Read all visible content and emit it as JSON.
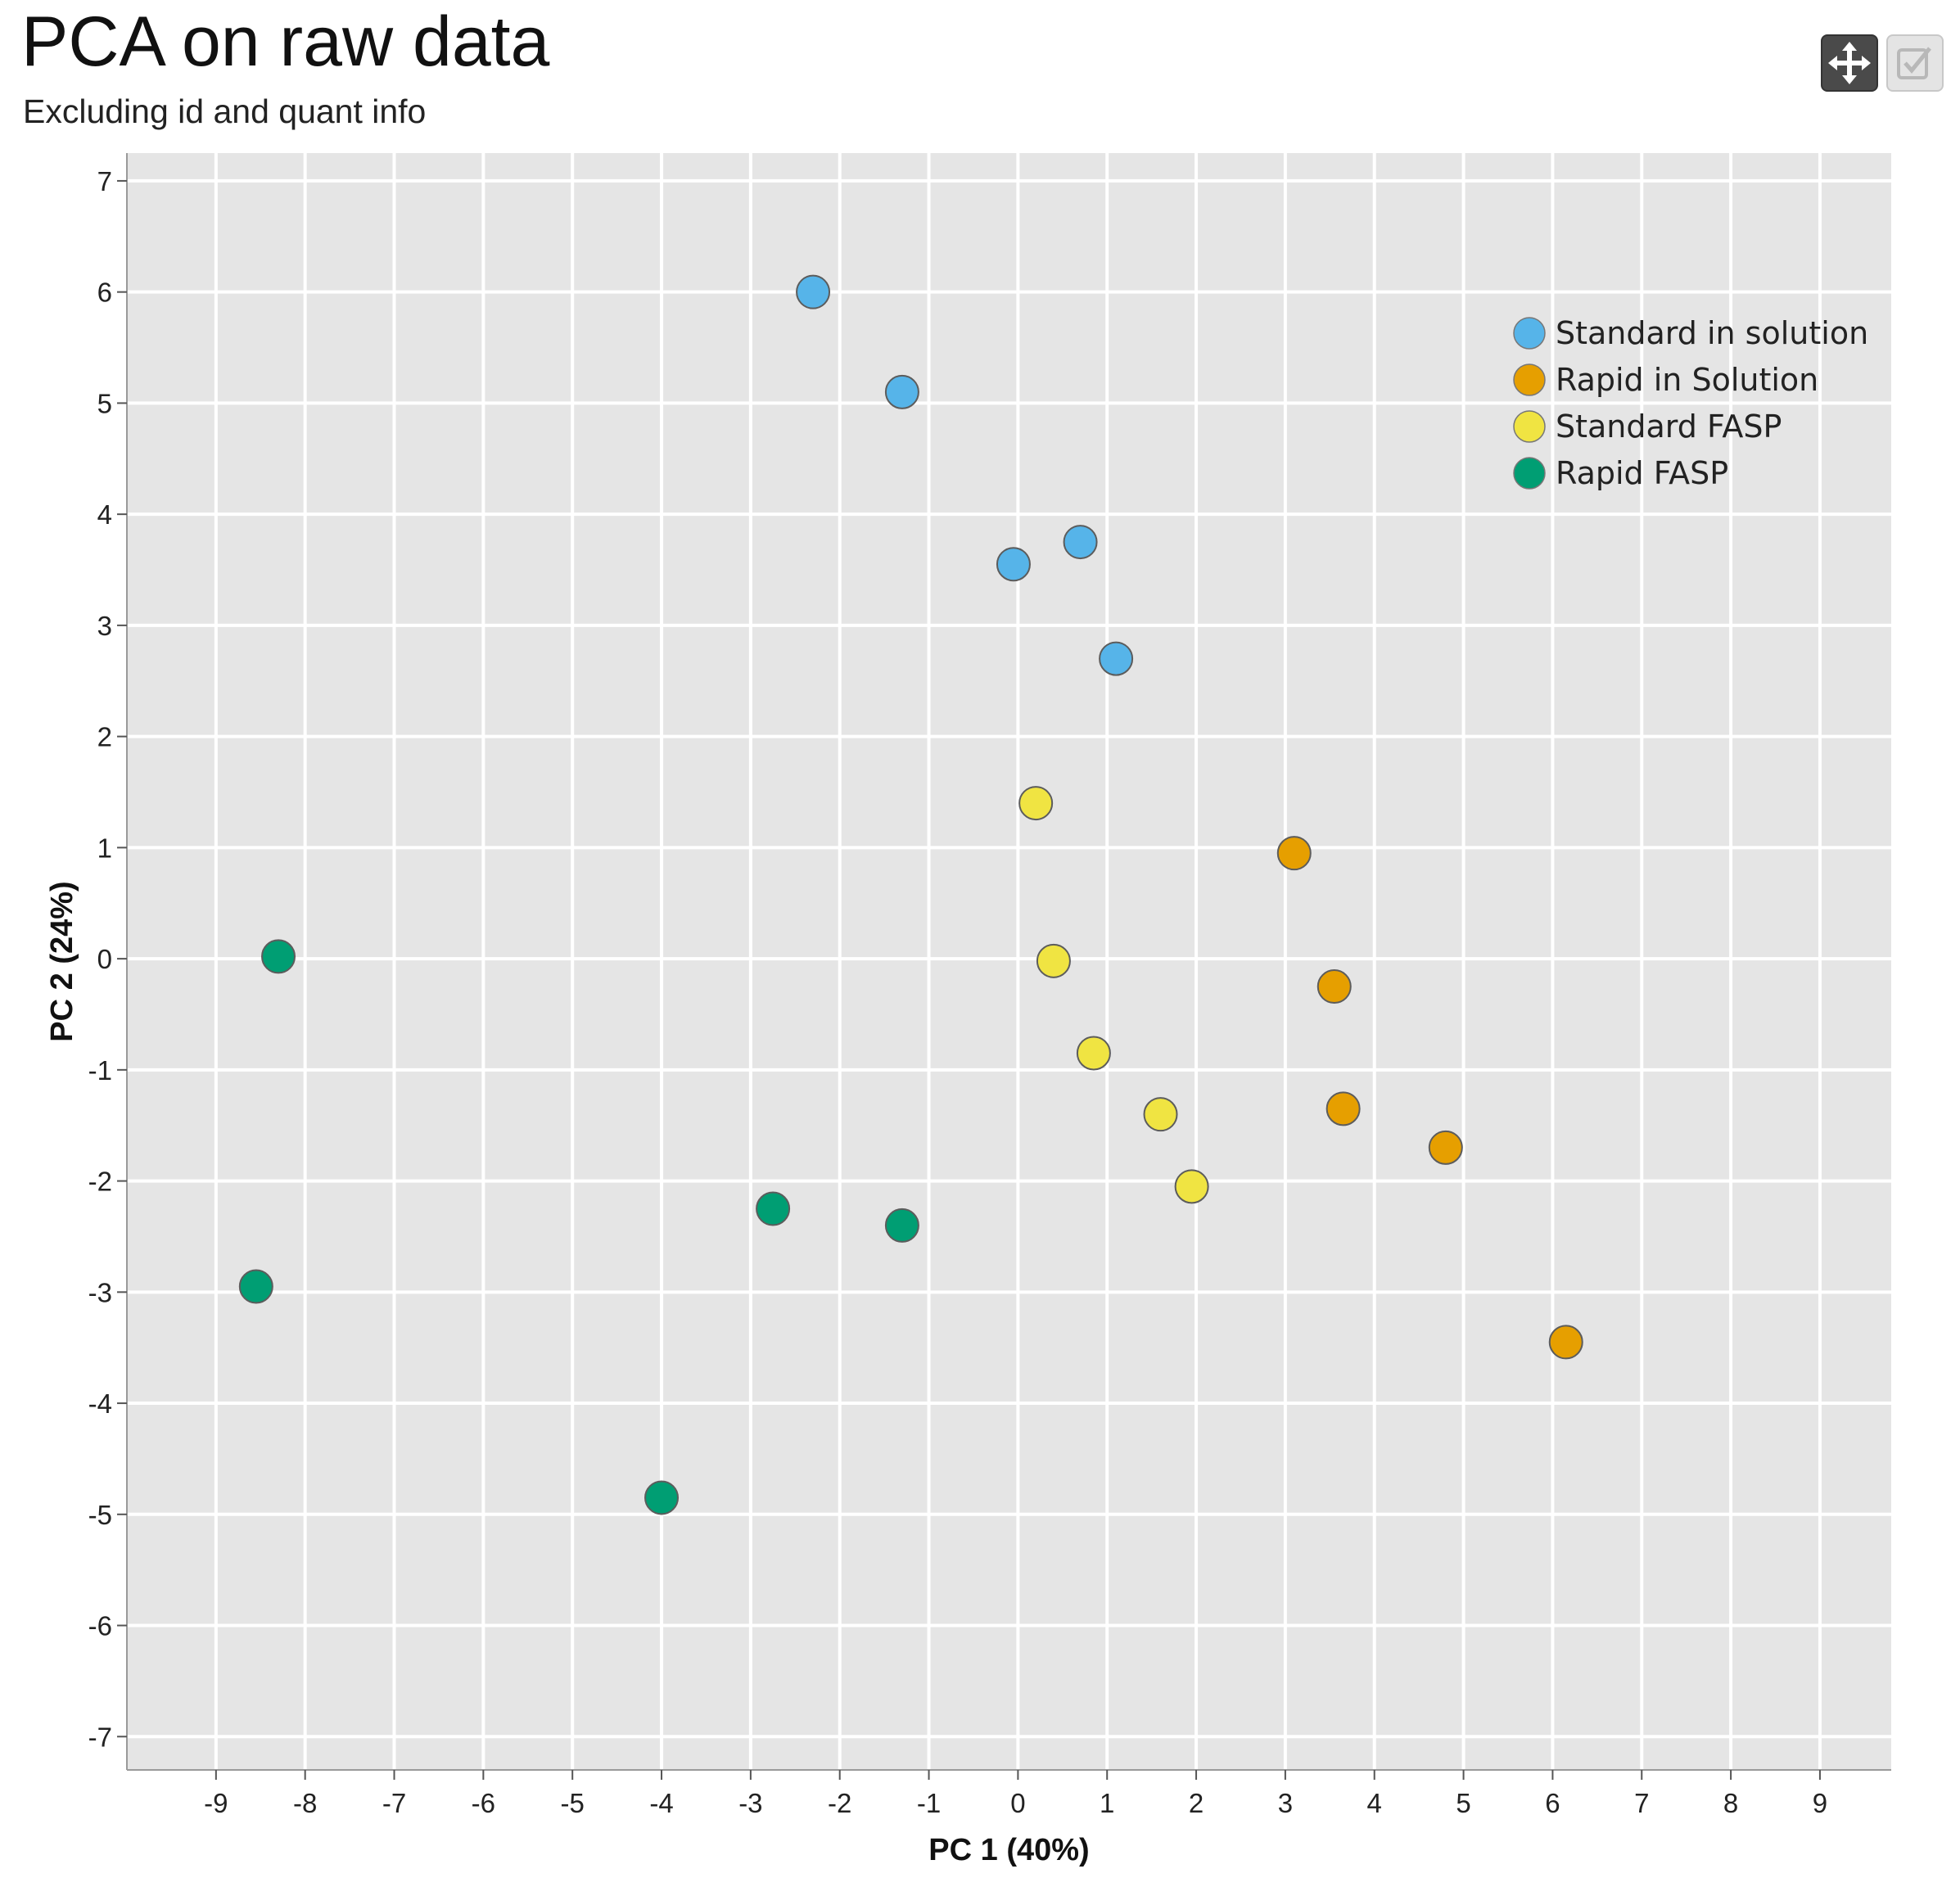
{
  "header": {
    "title": "PCA on raw data",
    "subtitle": "Excluding id and quant info"
  },
  "toolbar": {
    "pan_icon": "move-arrows-icon",
    "select_icon": "checkbox-icon"
  },
  "chart_data": {
    "type": "scatter",
    "title": "PCA on raw data",
    "subtitle": "Excluding id and quant info",
    "xlabel": "PC 1 (40%)",
    "ylabel": "PC 2 (24%)",
    "xlim": [
      -10,
      9.8
    ],
    "ylim": [
      -7.3,
      7.25
    ],
    "xticks": [
      -9,
      -8,
      -7,
      -6,
      -5,
      -4,
      -3,
      -2,
      -1,
      0,
      1,
      2,
      3,
      4,
      5,
      6,
      7,
      8,
      9
    ],
    "yticks": [
      7,
      6,
      5,
      4,
      3,
      2,
      1,
      0,
      -1,
      -2,
      -3,
      -4,
      -5,
      -6,
      -7
    ],
    "grid": true,
    "legend_position": "top-right",
    "series": [
      {
        "name": "Standard in solution",
        "color": "#56b4e9",
        "points": [
          [
            -2.3,
            6.0
          ],
          [
            -1.3,
            5.1
          ],
          [
            0.7,
            3.75
          ],
          [
            -0.05,
            3.55
          ],
          [
            1.1,
            2.7
          ]
        ]
      },
      {
        "name": "Rapid in Solution",
        "color": "#e69f00",
        "points": [
          [
            3.1,
            0.95
          ],
          [
            3.55,
            -0.25
          ],
          [
            3.65,
            -1.35
          ],
          [
            4.8,
            -1.7
          ],
          [
            6.15,
            -3.45
          ]
        ]
      },
      {
        "name": "Standard FASP",
        "color": "#f0e442",
        "points": [
          [
            0.2,
            1.4
          ],
          [
            0.4,
            -0.02
          ],
          [
            0.85,
            -0.85
          ],
          [
            1.6,
            -1.4
          ],
          [
            1.95,
            -2.05
          ]
        ]
      },
      {
        "name": "Rapid FASP",
        "color": "#009e73",
        "points": [
          [
            -8.3,
            0.02
          ],
          [
            -8.55,
            -2.95
          ],
          [
            -2.75,
            -2.25
          ],
          [
            -1.3,
            -2.4
          ],
          [
            -4.0,
            -4.85
          ]
        ]
      }
    ]
  }
}
